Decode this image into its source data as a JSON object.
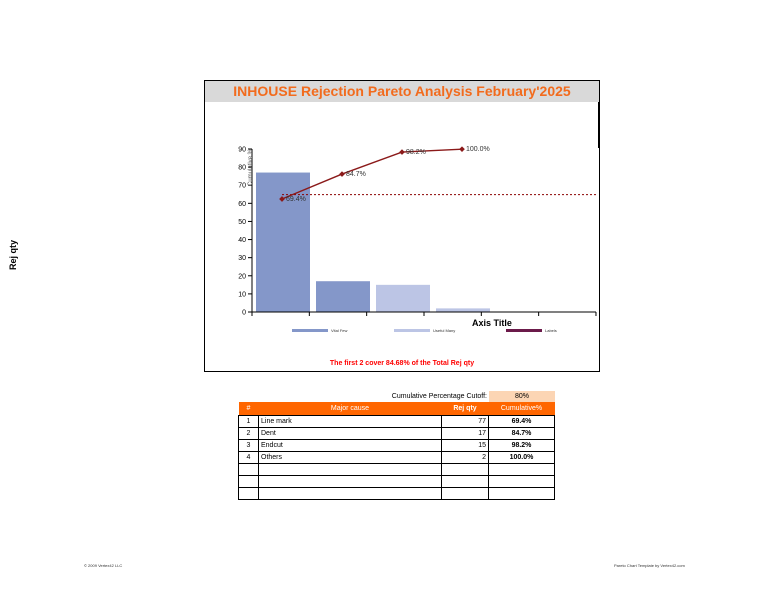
{
  "chart_data": {
    "type": "bar",
    "title": "INHOUSE Rejection Pareto Analysis February'2025",
    "ylabel": "Rej qty",
    "ylabel_secondary": "Cumulative %",
    "xlabel": "Axis Title",
    "ylim": [
      0,
      90
    ],
    "yticks": [
      0,
      10,
      20,
      30,
      40,
      50,
      60,
      70,
      80,
      90
    ],
    "categories": [
      "Line mark",
      "Dent",
      "Endcut",
      "Others"
    ],
    "bar_values": [
      77,
      17,
      15,
      2
    ],
    "bar_colors": [
      "#8497c9",
      "#8497c9",
      "#bcc5e5",
      "#bcc5e5"
    ],
    "cumulative": [
      69.4,
      84.7,
      98.2,
      100.0
    ],
    "cumulative_labels": [
      "69.4%",
      "84.7%",
      "98.2%",
      "100.0%"
    ],
    "cutoff_percent": 80,
    "cutoff_color": "#8b0000",
    "line_color": "#8b1a1a",
    "legend_position": "bottom",
    "legend": [
      {
        "label": "Vital Few",
        "color": "#8497c9"
      },
      {
        "label": "Useful Many",
        "color": "#bcc5e5"
      },
      {
        "label": "Labels",
        "color": "#6b1a4a"
      }
    ]
  },
  "footnote": "The first 2  cover 84.68% of the Total Rej qty",
  "cutoff": {
    "label": "Cumulative Percentage Cutoff:",
    "value": "80%"
  },
  "table": {
    "headers": [
      "#",
      "Major cause",
      "Rej qty",
      "Cumulative%"
    ],
    "rows": [
      {
        "n": "1",
        "cause": "Line mark",
        "qty": "77",
        "cum": "69.4%"
      },
      {
        "n": "2",
        "cause": "Dent",
        "qty": "17",
        "cum": "84.7%"
      },
      {
        "n": "3",
        "cause": "Endcut",
        "qty": "15",
        "cum": "98.2%"
      },
      {
        "n": "4",
        "cause": "Others",
        "qty": "2",
        "cum": "100.0%"
      },
      {
        "n": "",
        "cause": "",
        "qty": "",
        "cum": ""
      },
      {
        "n": "",
        "cause": "",
        "qty": "",
        "cum": ""
      },
      {
        "n": "",
        "cause": "",
        "qty": "",
        "cum": ""
      }
    ]
  },
  "footer": {
    "left": "© 2009 Vertex42 LLC",
    "right": "Pareto Chart Template by Vertex42.com"
  }
}
